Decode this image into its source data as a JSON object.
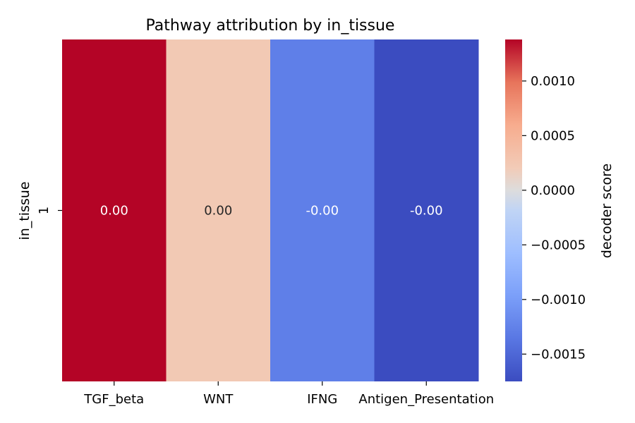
{
  "chart_data": {
    "type": "heatmap",
    "title": "Pathway attribution by in_tissue",
    "xlabel": "",
    "ylabel": "in_tissue",
    "categories": [
      "TGF_beta",
      "WNT",
      "IFNG",
      "Antigen_Presentation"
    ],
    "rows": [
      "1"
    ],
    "values": [
      [
        0.00138,
        0.00018,
        -0.00105,
        -0.00172
      ]
    ],
    "cell_labels": [
      [
        "0.00",
        "0.00",
        "-0.00",
        "-0.00"
      ]
    ],
    "colormap": "coolwarm",
    "colorbar": {
      "label": "decoder score",
      "range": [
        -0.00175,
        0.00138
      ],
      "ticks": [
        -0.0015,
        -0.001,
        -0.0005,
        0.0,
        0.0005,
        0.001
      ],
      "tick_labels": [
        "−0.0015",
        "−0.0010",
        "−0.0005",
        "0.0000",
        "0.0005",
        "0.0010"
      ]
    },
    "cell_colors": [
      "#b40426",
      "#f2c9b4",
      "#5f7fe8",
      "#3b4cc0"
    ],
    "cell_text_colors": [
      "#ffffff",
      "#262626",
      "#ffffff",
      "#ffffff"
    ]
  }
}
